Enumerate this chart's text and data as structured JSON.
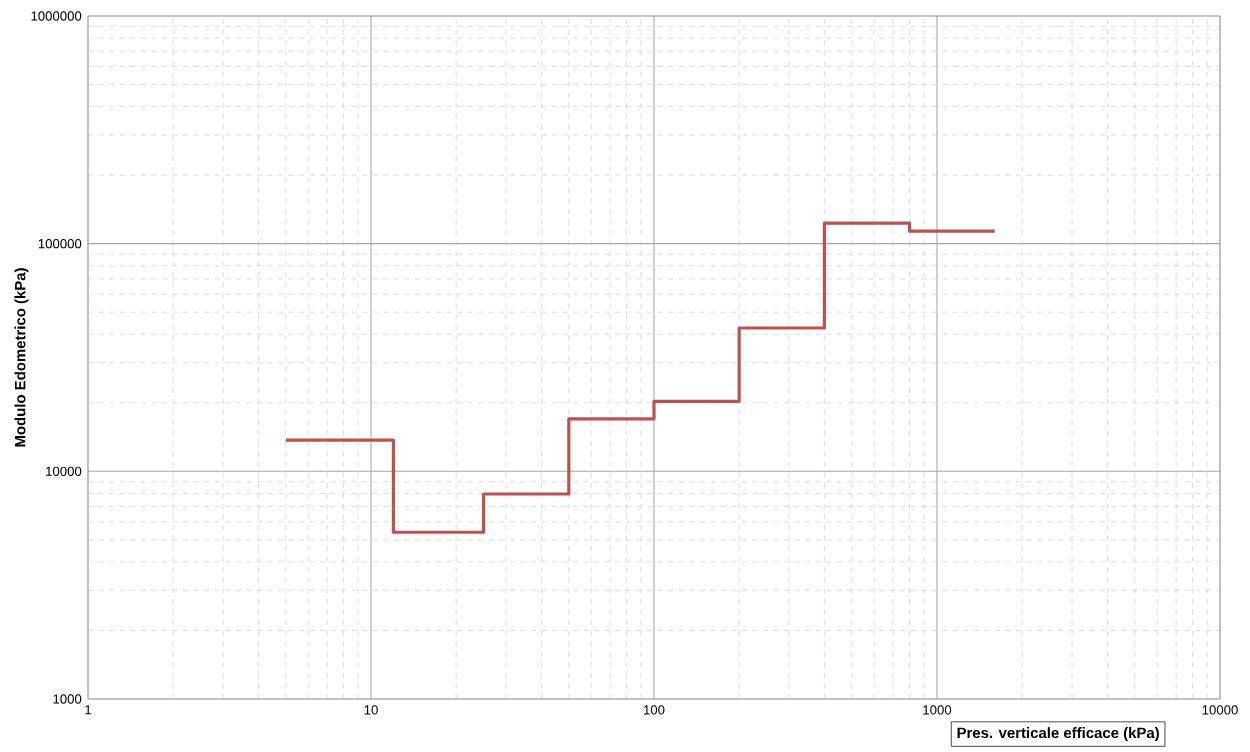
{
  "chart_data": {
    "type": "step",
    "xlabel": "Pres. verticale efficace (kPa)",
    "ylabel": "Modulo Edometrico (kPa)",
    "x": [
      5,
      12,
      25,
      50,
      100,
      200,
      400,
      800,
      1600
    ],
    "values": [
      13700,
      5400,
      7950,
      17000,
      20300,
      42600,
      123000,
      113500,
      113500
    ],
    "color": "#c0504d",
    "log": "xy",
    "grid": true,
    "xlim": [
      1,
      10000
    ],
    "ylim": [
      1000,
      1000000
    ],
    "xticks": [
      1,
      10,
      100,
      1000,
      10000
    ],
    "yticks": [
      1000,
      10000,
      100000,
      1000000
    ]
  }
}
